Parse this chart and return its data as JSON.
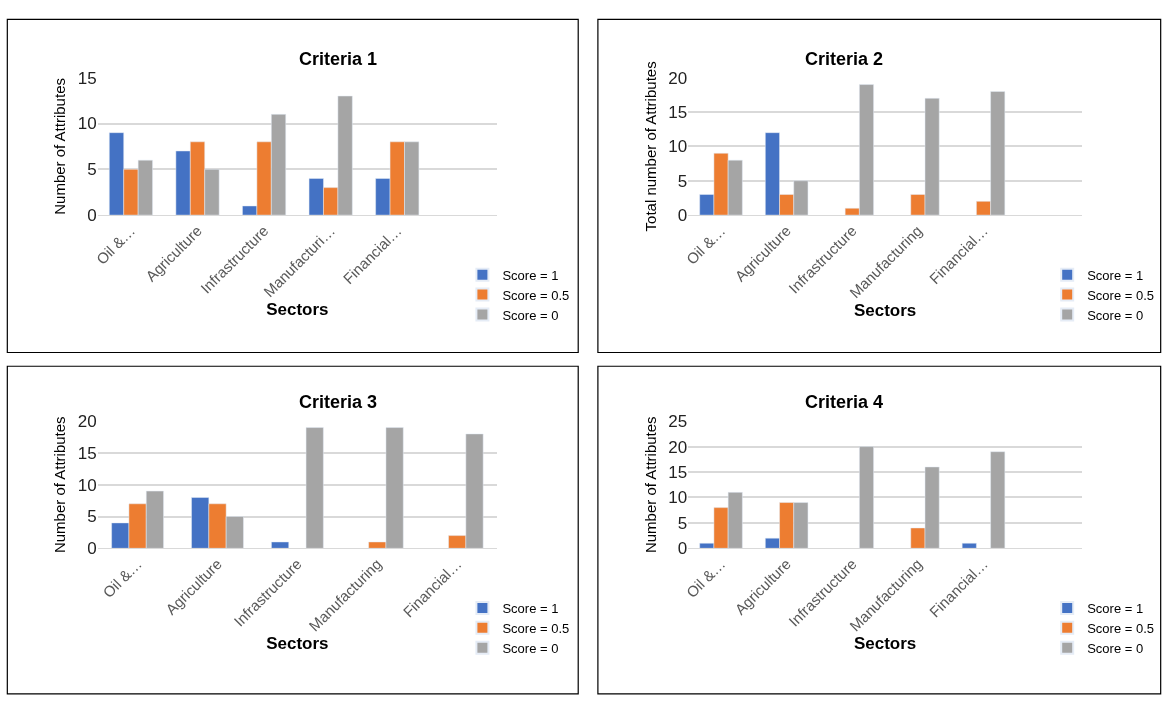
{
  "chart_data": [
    {
      "type": "bar",
      "title": "Criteria 1",
      "xlabel": "Sectors",
      "ylabel": "Number of Attributes",
      "categories": [
        "Oil &…",
        "Agriculture",
        "Infrastructure",
        "Manufacturi…",
        "Financial…",
        null
      ],
      "ylim": [
        0,
        15
      ],
      "yticks": [
        0,
        5,
        10,
        15
      ],
      "grid": "y",
      "legend": "bottom right",
      "series": [
        {
          "name": "Score = 1",
          "color": "#4472c4",
          "values": [
            9,
            7,
            1,
            4,
            4,
            null
          ]
        },
        {
          "name": "Score = 0.5",
          "color": "#ed7d31",
          "values": [
            5,
            8,
            8,
            3,
            8,
            null
          ]
        },
        {
          "name": "Score = 0",
          "color": "#a5a5a5",
          "values": [
            6,
            5,
            11,
            13,
            8,
            null
          ]
        }
      ]
    },
    {
      "type": "bar",
      "title": "Criteria 2",
      "xlabel": "Sectors",
      "ylabel": "Total number of Attributes",
      "categories": [
        "Oil &…",
        "Agriculture",
        "Infrastructure",
        "Manufacturing",
        "Financial…",
        null
      ],
      "ylim": [
        0,
        20
      ],
      "yticks": [
        0,
        5,
        10,
        15,
        20
      ],
      "grid": "y",
      "legend": "bottom right",
      "series": [
        {
          "name": "Score = 1",
          "color": "#4472c4",
          "values": [
            3,
            12,
            null,
            null,
            null,
            null
          ]
        },
        {
          "name": "Score = 0.5",
          "color": "#ed7d31",
          "values": [
            9,
            3,
            1,
            3,
            2,
            null
          ]
        },
        {
          "name": "Score = 0",
          "color": "#a5a5a5",
          "values": [
            8,
            5,
            19,
            17,
            18,
            null
          ]
        }
      ]
    },
    {
      "type": "bar",
      "title": "Criteria 3",
      "xlabel": "Sectors",
      "ylabel": "Number of Attributes",
      "categories": [
        "Oil &…",
        "Agriculture",
        "Infrastructure",
        "Manufacturing",
        "Financial…"
      ],
      "ylim": [
        0,
        20
      ],
      "yticks": [
        0,
        5,
        10,
        15,
        20
      ],
      "grid": "y",
      "legend": "bottom right",
      "series": [
        {
          "name": "Score = 1",
          "color": "#4472c4",
          "values": [
            4,
            8,
            1,
            null,
            null
          ]
        },
        {
          "name": "Score = 0.5",
          "color": "#ed7d31",
          "values": [
            7,
            7,
            null,
            1,
            2
          ]
        },
        {
          "name": "Score = 0",
          "color": "#a5a5a5",
          "values": [
            9,
            5,
            19,
            19,
            18
          ]
        }
      ]
    },
    {
      "type": "bar",
      "title": "Criteria 4",
      "xlabel": "Sectors",
      "ylabel": "Number of Attributes",
      "categories": [
        "Oil &…",
        "Agriculture",
        "Infrastructure",
        "Manufacturing",
        "Financial…",
        null
      ],
      "ylim": [
        0,
        25
      ],
      "yticks": [
        0,
        5,
        10,
        15,
        20,
        25
      ],
      "grid": "y",
      "legend": "bottom right",
      "series": [
        {
          "name": "Score = 1",
          "color": "#4472c4",
          "values": [
            1,
            2,
            null,
            null,
            1,
            null
          ]
        },
        {
          "name": "Score = 0.5",
          "color": "#ed7d31",
          "values": [
            8,
            9,
            null,
            4,
            null,
            null
          ]
        },
        {
          "name": "Score = 0",
          "color": "#a5a5a5",
          "values": [
            11,
            9,
            20,
            16,
            19,
            null
          ]
        }
      ]
    }
  ]
}
